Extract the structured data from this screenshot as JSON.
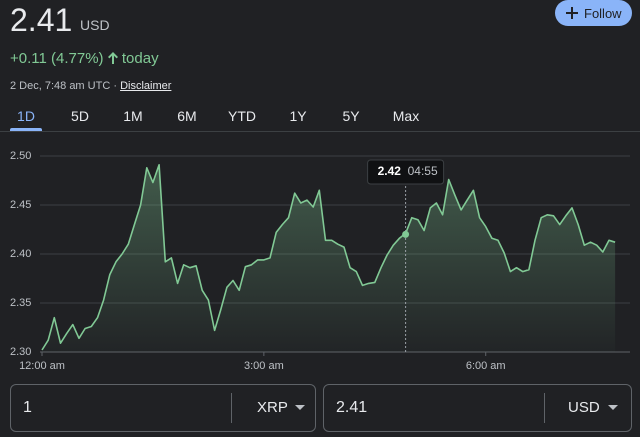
{
  "header": {
    "price": "2.41",
    "currency": "USD",
    "change": "+0.11 (4.77%)",
    "period": "today",
    "date": "2 Dec, 7:48 am UTC",
    "separator": "·",
    "disclaimer": "Disclaimer",
    "follow": "Follow"
  },
  "tabs": {
    "items": [
      "1D",
      "5D",
      "1M",
      "6M",
      "YTD",
      "1Y",
      "5Y",
      "Max"
    ],
    "selected": "1D"
  },
  "chart_data": {
    "type": "line",
    "x": [
      0,
      5,
      10,
      15,
      20,
      25,
      30,
      35,
      40,
      45,
      50,
      55,
      60,
      65,
      70,
      75,
      80,
      85,
      90,
      95,
      100,
      105,
      110,
      115,
      120,
      125,
      130,
      135,
      140,
      145,
      150,
      155,
      160,
      165,
      170,
      175,
      180,
      185,
      190,
      195,
      200,
      205,
      210,
      215,
      220,
      225,
      230,
      235,
      240,
      245,
      250,
      255,
      260,
      265,
      270,
      275,
      280,
      285,
      290,
      295,
      300,
      305,
      310,
      315,
      320,
      325,
      330,
      335,
      340,
      345,
      350,
      355,
      360,
      365,
      370,
      375,
      380,
      385,
      390,
      395,
      400,
      405,
      410,
      415,
      420,
      425,
      430,
      435,
      440,
      445,
      450,
      455,
      460,
      465
    ],
    "series": [
      {
        "name": "XRP",
        "color": "#81c995",
        "values": [
          2.302,
          2.312,
          2.335,
          2.309,
          2.319,
          2.328,
          2.314,
          2.324,
          2.326,
          2.335,
          2.353,
          2.379,
          2.392,
          2.4,
          2.41,
          2.43,
          2.45,
          2.488,
          2.473,
          2.491,
          2.392,
          2.396,
          2.37,
          2.389,
          2.386,
          2.388,
          2.363,
          2.353,
          2.322,
          2.343,
          2.366,
          2.373,
          2.363,
          2.387,
          2.389,
          2.394,
          2.394,
          2.396,
          2.422,
          2.43,
          2.437,
          2.462,
          2.452,
          2.455,
          2.448,
          2.465,
          2.414,
          2.414,
          2.41,
          2.407,
          2.386,
          2.382,
          2.368,
          2.37,
          2.371,
          2.386,
          2.399,
          2.409,
          2.416,
          2.421,
          2.437,
          2.435,
          2.424,
          2.447,
          2.452,
          2.44,
          2.476,
          2.46,
          2.445,
          2.455,
          2.465,
          2.437,
          2.428,
          2.416,
          2.414,
          2.401,
          2.382,
          2.386,
          2.382,
          2.384,
          2.414,
          2.437,
          2.44,
          2.439,
          2.43,
          2.439,
          2.447,
          2.43,
          2.409,
          2.412,
          2.409,
          2.402,
          2.414,
          2.412
        ]
      }
    ],
    "xlim": [
      0,
      473
    ],
    "xticks": [
      {
        "value": 0,
        "label": "12:00 am"
      },
      {
        "value": 180,
        "label": "3:00 am"
      },
      {
        "value": 360,
        "label": "6:00 am"
      }
    ],
    "ylim": [
      2.3,
      2.5
    ],
    "yticks": [
      {
        "value": 2.5,
        "label": "2.50"
      },
      2.45,
      {
        "value": 2.4,
        "label": "2.40"
      },
      2.35,
      {
        "value": 2.3,
        "label": "2.30"
      }
    ],
    "grid": true,
    "hover": {
      "x": {
        "value": 295,
        "label": "04:55"
      },
      "y": 2.42
    }
  },
  "converter": {
    "from_amount": "1",
    "from_unit": "XRP",
    "to_amount": "2.41",
    "to_unit": "USD"
  }
}
